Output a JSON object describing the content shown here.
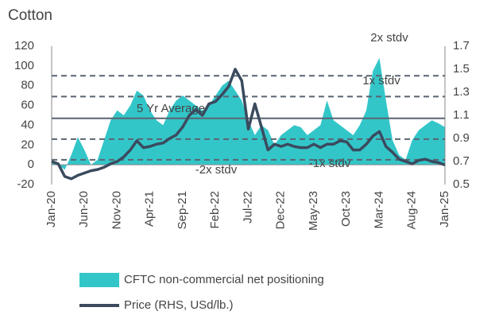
{
  "chart_data": {
    "type": "area_line",
    "title": "Cotton",
    "categories": [
      "Jan-20",
      null,
      null,
      null,
      null,
      "Jun-20",
      null,
      null,
      null,
      null,
      "Nov-20",
      null,
      null,
      null,
      null,
      "Apr-21",
      null,
      null,
      null,
      null,
      "Sep-21",
      null,
      null,
      null,
      null,
      "Feb-22",
      null,
      null,
      null,
      null,
      "Jul-22",
      null,
      null,
      null,
      null,
      "Dec-22",
      null,
      null,
      null,
      null,
      "May-23",
      null,
      null,
      null,
      null,
      "Oct-23",
      null,
      null,
      null,
      null,
      "Mar-24",
      null,
      null,
      null,
      null,
      "Aug-24",
      null,
      null,
      null,
      null,
      "Jan-25"
    ],
    "series": [
      {
        "name": "CFTC non-commercial net positioning",
        "type": "area",
        "color": "#33c6c9",
        "values": [
          5,
          0,
          -5,
          10,
          28,
          15,
          0,
          5,
          25,
          45,
          55,
          50,
          60,
          75,
          70,
          55,
          45,
          40,
          55,
          65,
          70,
          65,
          60,
          55,
          60,
          70,
          80,
          85,
          75,
          65,
          45,
          30,
          40,
          35,
          20,
          30,
          35,
          40,
          38,
          30,
          35,
          40,
          65,
          45,
          40,
          35,
          30,
          40,
          55,
          95,
          108,
          65,
          25,
          10,
          5,
          25,
          35,
          40,
          45,
          42,
          38
        ]
      },
      {
        "name": "Price (RHS, USd/lb.)",
        "type": "line",
        "axis": "y2",
        "color": "#3b4a5e",
        "values": [
          0.7,
          0.68,
          0.57,
          0.55,
          0.58,
          0.6,
          0.62,
          0.63,
          0.65,
          0.68,
          0.7,
          0.74,
          0.8,
          0.88,
          0.82,
          0.83,
          0.85,
          0.86,
          0.9,
          0.93,
          1.0,
          1.1,
          1.15,
          1.1,
          1.2,
          1.22,
          1.28,
          1.35,
          1.5,
          1.4,
          0.98,
          1.2,
          1.0,
          0.8,
          0.85,
          0.83,
          0.85,
          0.83,
          0.82,
          0.82,
          0.85,
          0.82,
          0.85,
          0.85,
          0.88,
          0.87,
          0.8,
          0.8,
          0.85,
          0.92,
          0.96,
          0.83,
          0.78,
          0.72,
          0.7,
          0.68,
          0.71,
          0.72,
          0.7,
          0.69,
          0.67
        ]
      }
    ],
    "ylim": [
      -20,
      120
    ],
    "yticks": [
      -20,
      0,
      20,
      40,
      60,
      80,
      100,
      120
    ],
    "y2lim": [
      0.5,
      1.7
    ],
    "y2ticks": [
      0.5,
      0.7,
      0.9,
      1.1,
      1.3,
      1.5,
      1.7
    ],
    "reference_lines": [
      {
        "label": "2x stdv",
        "value": 90,
        "style": "dashed"
      },
      {
        "label": "1x stdv",
        "value": 69,
        "style": "dashed"
      },
      {
        "label": "5 Yr Average",
        "value": 47,
        "style": "solid"
      },
      {
        "label": "-1x stdv",
        "value": 26,
        "style": "dashed"
      },
      {
        "label": "-2x stdv",
        "value": 5,
        "style": "dashed"
      }
    ],
    "legend": "bottom"
  }
}
